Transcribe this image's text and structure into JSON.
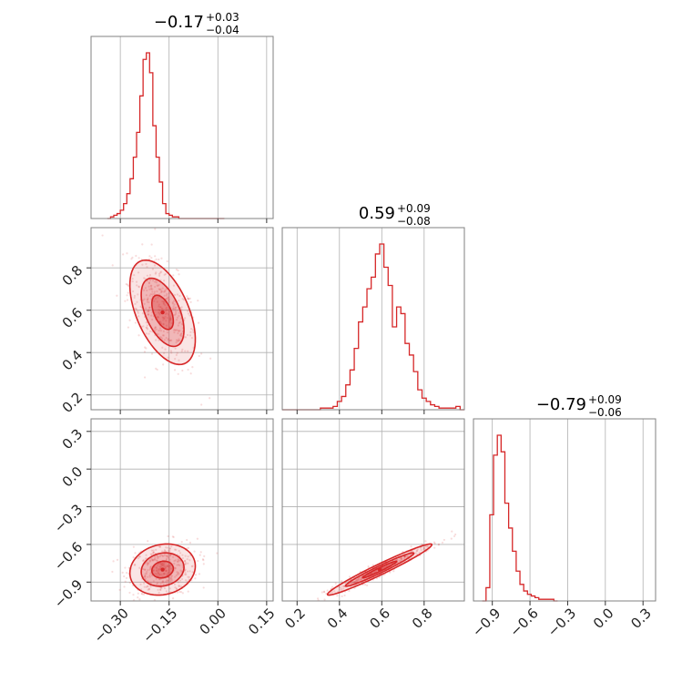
{
  "chart_data": {
    "type": "corner",
    "color": "#d62728",
    "parameters": [
      {
        "title": {
          "median": "−0.17",
          "plus": "+0.03",
          "minus": "−0.04"
        },
        "range": [
          -0.39,
          0.17
        ],
        "ticks": [
          -0.3,
          -0.15,
          0.0,
          0.15
        ],
        "tick_labels": [
          "−0.30",
          "−0.15",
          "0.00",
          "0.15"
        ],
        "histogram": {
          "bin_edges": [
            -0.34,
            -0.33,
            -0.32,
            -0.31,
            -0.3,
            -0.29,
            -0.28,
            -0.27,
            -0.26,
            -0.25,
            -0.24,
            -0.23,
            -0.22,
            -0.21,
            -0.2,
            -0.19,
            -0.18,
            -0.17,
            -0.16,
            -0.15,
            -0.14,
            -0.13,
            -0.12,
            -0.11,
            -0.1,
            -0.09,
            -0.08,
            -0.07,
            -0.06,
            -0.05,
            -0.04,
            -0.03,
            -0.02,
            -0.01,
            0.0,
            0.01,
            0.02
          ],
          "counts": [
            0.0,
            0.01,
            0.02,
            0.03,
            0.05,
            0.09,
            0.15,
            0.24,
            0.37,
            0.52,
            0.74,
            0.96,
            1.0,
            0.88,
            0.56,
            0.37,
            0.22,
            0.09,
            0.03,
            0.02,
            0.01,
            0.01,
            0.0,
            0.0,
            0.0,
            0.0,
            0.0,
            0.0,
            0.0,
            0.0,
            0.0,
            0.0,
            0.0,
            0.0,
            0.0,
            0.0
          ]
        }
      },
      {
        "title": {
          "median": "0.59",
          "plus": "+0.09",
          "minus": "−0.08"
        },
        "range": [
          0.13,
          0.99
        ],
        "ticks": [
          0.2,
          0.4,
          0.6,
          0.8
        ],
        "tick_labels": [
          "0.2",
          "0.4",
          "0.6",
          "0.8"
        ],
        "histogram": {
          "bin_edges": [
            0.13,
            0.15,
            0.17,
            0.19,
            0.21,
            0.23,
            0.25,
            0.27,
            0.29,
            0.31,
            0.33,
            0.35,
            0.37,
            0.39,
            0.41,
            0.43,
            0.45,
            0.47,
            0.49,
            0.51,
            0.53,
            0.55,
            0.57,
            0.59,
            0.61,
            0.63,
            0.65,
            0.67,
            0.69,
            0.71,
            0.73,
            0.75,
            0.77,
            0.79,
            0.81,
            0.83,
            0.85,
            0.87,
            0.89,
            0.91,
            0.93,
            0.95,
            0.97,
            0.99
          ],
          "counts": [
            0.0,
            0.0,
            0.0,
            0.0,
            0.0,
            0.0,
            0.0,
            0.0,
            0.0,
            0.01,
            0.01,
            0.01,
            0.02,
            0.05,
            0.08,
            0.15,
            0.24,
            0.37,
            0.53,
            0.62,
            0.73,
            0.8,
            0.94,
            1.0,
            0.86,
            0.75,
            0.5,
            0.62,
            0.58,
            0.4,
            0.33,
            0.23,
            0.12,
            0.07,
            0.05,
            0.03,
            0.02,
            0.01,
            0.01,
            0.01,
            0.01,
            0.02,
            0.0
          ]
        }
      },
      {
        "title": {
          "median": "−0.79",
          "plus": "+0.09",
          "minus": "−0.06"
        },
        "range": [
          -1.05,
          0.4
        ],
        "ticks": [
          -0.9,
          -0.6,
          -0.3,
          0.0,
          0.3
        ],
        "tick_labels": [
          "−0.9",
          "−0.6",
          "−0.3",
          "0.0",
          "0.3"
        ],
        "histogram": {
          "bin_edges": [
            -0.98,
            -0.95,
            -0.92,
            -0.89,
            -0.86,
            -0.83,
            -0.8,
            -0.77,
            -0.74,
            -0.71,
            -0.68,
            -0.65,
            -0.62,
            -0.59,
            -0.56,
            -0.53,
            -0.5,
            -0.47,
            -0.44,
            -0.41,
            -0.38
          ],
          "counts": [
            0.0,
            0.08,
            0.52,
            0.88,
            1.0,
            0.9,
            0.59,
            0.44,
            0.3,
            0.18,
            0.1,
            0.06,
            0.04,
            0.03,
            0.02,
            0.01,
            0.01,
            0.01,
            0.01,
            0.0
          ]
        }
      }
    ],
    "pairs": [
      {
        "x_param": 0,
        "y_param": 1,
        "center": [
          -0.17,
          0.59
        ],
        "contour_levels": [
          0.39,
          0.86,
          0.99
        ],
        "cov": [
          [
            0.0011,
            -0.0014
          ],
          [
            -0.0014,
            0.0066
          ]
        ]
      },
      {
        "x_param": 0,
        "y_param": 2,
        "center": [
          -0.17,
          -0.8
        ],
        "contour_levels": [
          0.39,
          0.86,
          0.99
        ],
        "cov": [
          [
            0.0011,
            0.0003
          ],
          [
            0.0003,
            0.0045
          ]
        ]
      },
      {
        "x_param": 1,
        "y_param": 2,
        "center": [
          0.59,
          -0.8
        ],
        "contour_levels": [
          0.39,
          0.86,
          0.99
        ],
        "cov": [
          [
            0.0066,
            0.0053
          ],
          [
            0.0053,
            0.0045
          ]
        ]
      }
    ]
  }
}
